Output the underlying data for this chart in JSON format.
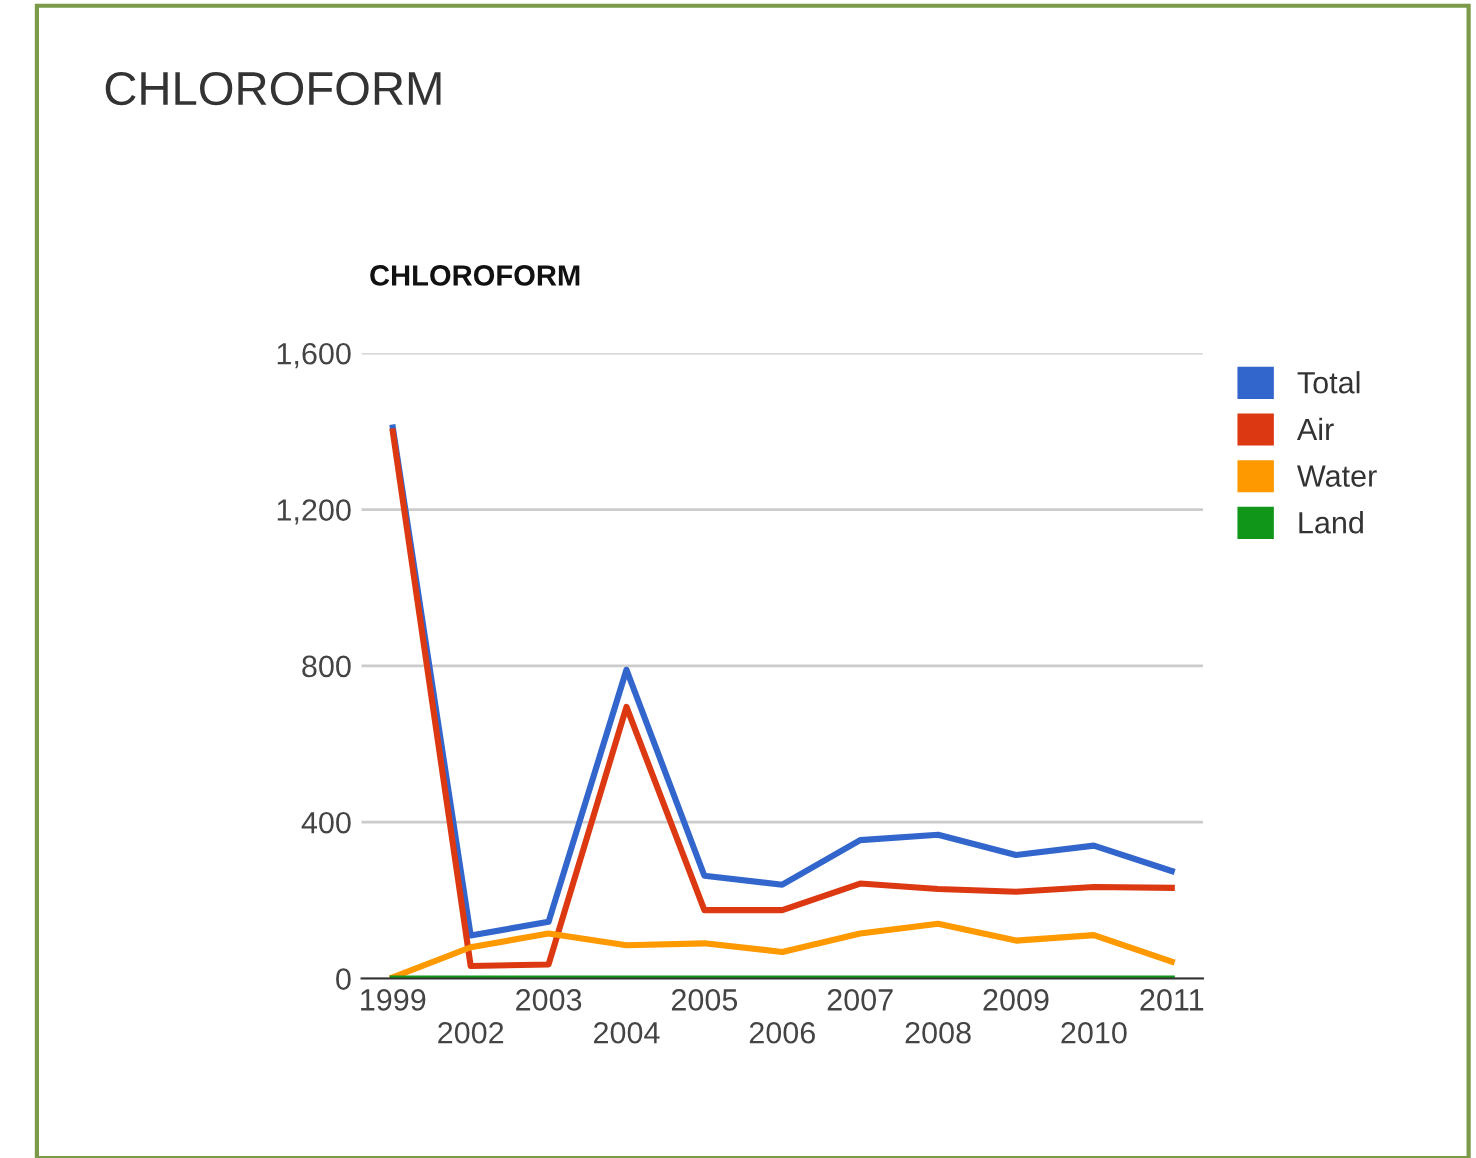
{
  "chart_data": {
    "type": "line",
    "title": "CHLOROFORM",
    "subtitle": "CHLOROFORM",
    "categories": [
      "1999",
      "2002",
      "2003",
      "2004",
      "2005",
      "2006",
      "2007",
      "2008",
      "2009",
      "2010",
      "2011"
    ],
    "series": [
      {
        "name": "Total",
        "color": "#3366cc",
        "values": [
          1410,
          110,
          145,
          790,
          263,
          240,
          354,
          368,
          316,
          340,
          275
        ]
      },
      {
        "name": "Air",
        "color": "#dc3912",
        "values": [
          1400,
          32,
          36,
          695,
          175,
          175,
          243,
          229,
          222,
          234,
          232
        ]
      },
      {
        "name": "Water",
        "color": "#ff9900",
        "values": [
          3,
          80,
          115,
          85,
          90,
          68,
          115,
          140,
          97,
          111,
          43
        ]
      },
      {
        "name": "Land",
        "color": "#109618",
        "values": [
          0,
          0,
          0,
          0,
          0,
          0,
          0,
          0,
          0,
          0,
          0
        ]
      }
    ],
    "ylim": [
      0,
      1600
    ],
    "yticks": [
      0,
      {
        "value": 400,
        "label": "400"
      },
      {
        "value": 800,
        "label": "800"
      },
      {
        "value": 1200,
        "label": "1,200"
      },
      {
        "value": 1600,
        "label": "1,600"
      }
    ],
    "grid": "y",
    "legend": "top right",
    "marker": "none",
    "line_style": "solid"
  }
}
